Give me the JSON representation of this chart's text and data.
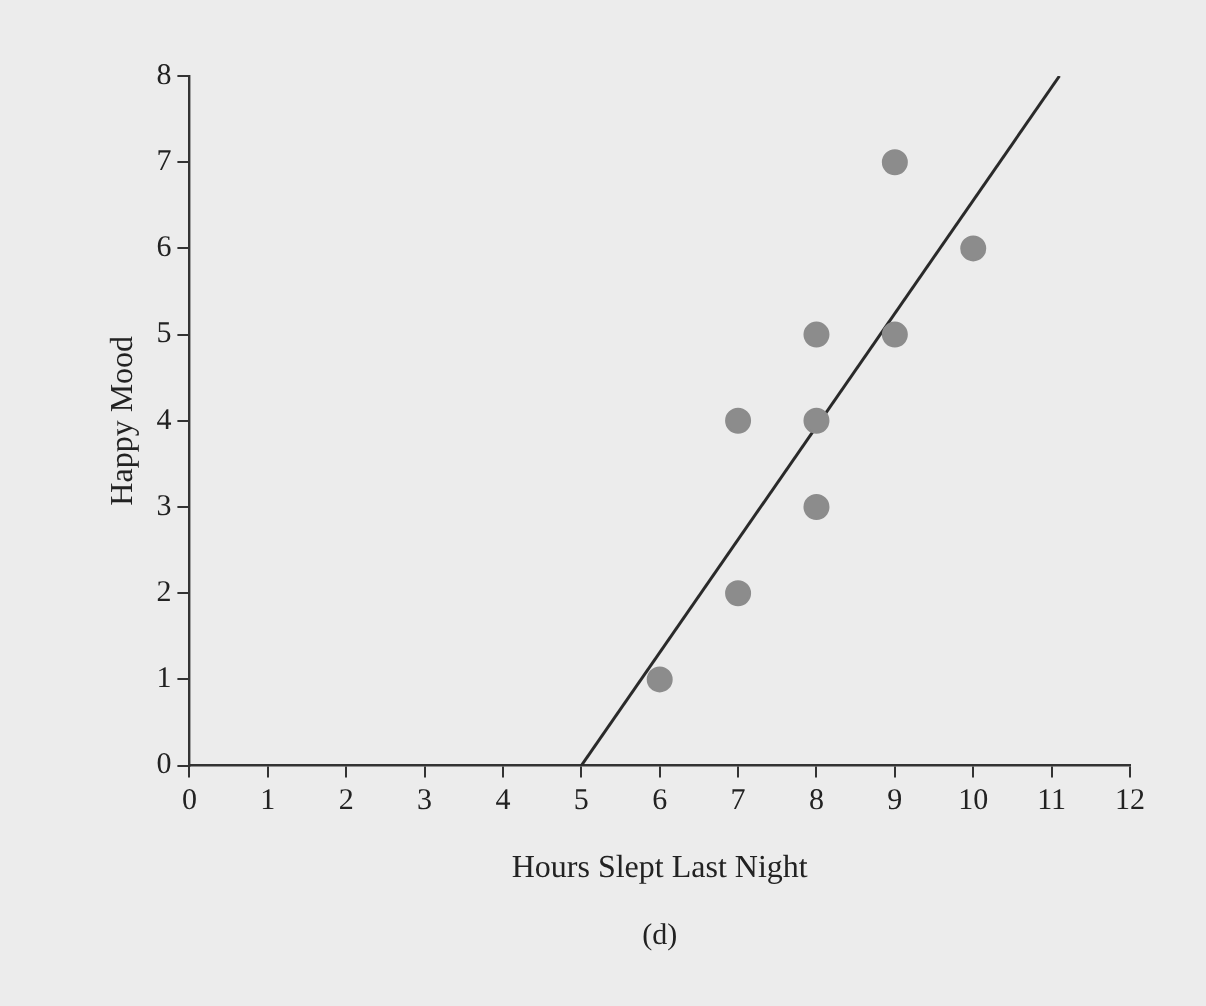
{
  "chart_data": {
    "type": "scatter",
    "xlabel": "Hours Slept Last Night",
    "ylabel": "Happy Mood",
    "annotations": [
      "(d)"
    ],
    "xlim": [
      0,
      12
    ],
    "xticks": [
      0,
      1,
      2,
      3,
      4,
      5,
      6,
      7,
      8,
      9,
      10,
      11,
      12
    ],
    "ylim": [
      0,
      8
    ],
    "yticks": [
      0,
      1,
      2,
      3,
      4,
      5,
      6,
      7,
      8
    ],
    "series": [
      {
        "marker": "circle",
        "color": "#8c8c8c",
        "x": [
          6,
          7,
          7,
          8,
          8,
          8,
          9,
          9,
          10
        ],
        "values": [
          1,
          2,
          4,
          3,
          4,
          5,
          5,
          7,
          6
        ]
      },
      {
        "type": "line",
        "marker": "none",
        "color": "#2a2a2a",
        "x": [
          5,
          11.1
        ],
        "values": [
          0,
          8
        ]
      }
    ]
  }
}
